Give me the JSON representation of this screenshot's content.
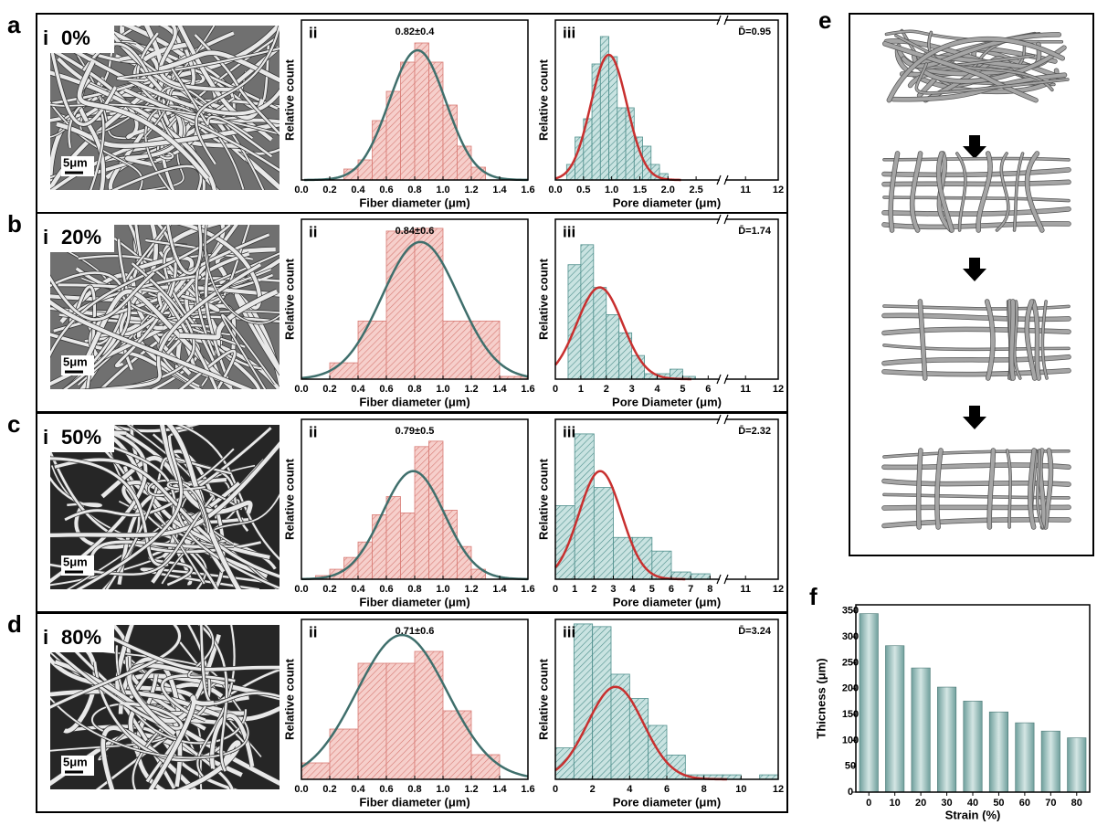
{
  "figure": {
    "rows": [
      {
        "letter": "a",
        "sem": {
          "label": "i",
          "strain": "0%",
          "scale": "5μm"
        }
      },
      {
        "letter": "b",
        "sem": {
          "label": "i",
          "strain": "20%",
          "scale": "5μm"
        }
      },
      {
        "letter": "c",
        "sem": {
          "label": "i",
          "strain": "50%",
          "scale": "5μm"
        }
      },
      {
        "letter": "d",
        "sem": {
          "label": "i",
          "strain": "80%",
          "scale": "5μm"
        }
      }
    ],
    "panel_e": {
      "letter": "e"
    }
  },
  "chart_data": [
    {
      "type": "histogram",
      "title": "ii",
      "annotation": "0.82±0.4",
      "xlabel": "Fiber diameter (μm)",
      "ylabel": "Relative count",
      "bins": [
        0.3,
        0.4,
        0.5,
        0.6,
        0.7,
        0.8,
        0.9,
        1.0,
        1.1,
        1.2,
        1.3
      ],
      "values": [
        12,
        22,
        65,
        97,
        129,
        150,
        129,
        82,
        37,
        14
      ],
      "color": "#f6cfcb",
      "hatch": "#d77a74",
      "fit": {
        "mean": 0.82,
        "sd": 0.2,
        "peak": 142,
        "color": "#3f6f6c"
      },
      "xlim": [
        0,
        1.6
      ],
      "ylim": [
        0,
        175
      ],
      "xticks": [
        {
          "value": 0,
          "label": "0.0"
        },
        0.2,
        0.4,
        0.6,
        0.8,
        {
          "value": 1,
          "label": "1.0"
        },
        1.2,
        1.4,
        1.6
      ]
    },
    {
      "type": "histogram",
      "title": "iii",
      "annotation": "D̄=0.95",
      "xlabel": "Pore diameter (μm)",
      "ylabel": "Relative count",
      "bins": [
        0.2,
        0.35,
        0.5,
        0.65,
        0.8,
        0.95,
        1.1,
        1.25,
        1.4,
        1.55,
        1.7,
        1.85,
        2.0
      ],
      "values": [
        17,
        47,
        67,
        127,
        157,
        135,
        79,
        79,
        47,
        37,
        17,
        7
      ],
      "color": "#c9e3e1",
      "hatch": "#4f8f8c",
      "fit": {
        "mean": 0.95,
        "sd": 0.32,
        "peak": 137,
        "color": "#c8302f"
      },
      "xlim": [
        0,
        12
      ],
      "xbreak": [
        2.85,
        10.5
      ],
      "ylim": [
        0,
        175
      ],
      "xticks": [
        {
          "value": 0,
          "label": "0.0"
        },
        0.5,
        {
          "value": 1,
          "label": "1.0"
        },
        1.5,
        {
          "value": 2,
          "label": "2.0"
        },
        2.5,
        11,
        12
      ]
    },
    {
      "type": "histogram",
      "title": "ii",
      "annotation": "0.84±0.6",
      "xlabel": "Fiber diameter (μm)",
      "ylabel": "Relative count",
      "bins": [
        0.2,
        0.4,
        0.6,
        0.8,
        1.0,
        1.2,
        1.4,
        1.6
      ],
      "values": [
        18,
        64,
        163,
        166,
        64,
        64,
        3
      ],
      "color": "#f6cfcb",
      "hatch": "#d77a74",
      "fit": {
        "mean": 0.84,
        "sd": 0.27,
        "peak": 151,
        "color": "#3f6f6c"
      },
      "xlim": [
        0,
        1.6
      ],
      "ylim": [
        0,
        176
      ],
      "xticks": [
        {
          "value": 0,
          "label": "0.0"
        },
        0.2,
        0.4,
        0.6,
        0.8,
        {
          "value": 1,
          "label": "1.0"
        },
        1.2,
        1.4,
        1.6
      ]
    },
    {
      "type": "histogram",
      "title": "iii",
      "annotation": "D̄=1.74",
      "xlabel": "Pore Diameter (μm)",
      "ylabel": "Relative count",
      "bins": [
        0.5,
        1,
        1.5,
        2,
        2.5,
        3,
        3.5,
        4,
        4.5,
        5,
        5.5
      ],
      "values": [
        126,
        148,
        101,
        71,
        51,
        26,
        6,
        6,
        11,
        3
      ],
      "color": "#c9e3e1",
      "hatch": "#4f8f8c",
      "fit": {
        "mean": 1.74,
        "sd": 0.9,
        "peak": 101,
        "color": "#c8302f"
      },
      "xlim": [
        0,
        12
      ],
      "xbreak": [
        6.3,
        10.5
      ],
      "ylim": [
        0,
        176
      ],
      "xticks": [
        0,
        1,
        2,
        3,
        4,
        5,
        6,
        11,
        12
      ]
    },
    {
      "type": "histogram",
      "title": "ii",
      "annotation": "0.79±0.5",
      "xlabel": "Fiber diameter (μm)",
      "ylabel": "Relative count",
      "bins": [
        0.1,
        0.2,
        0.3,
        0.4,
        0.5,
        0.6,
        0.7,
        0.8,
        0.9,
        1.0,
        1.1,
        1.2,
        1.3
      ],
      "values": [
        4,
        11,
        24,
        41,
        71,
        91,
        73,
        146,
        152,
        76,
        36,
        11
      ],
      "color": "#f6cfcb",
      "hatch": "#d77a74",
      "fit": {
        "mean": 0.79,
        "sd": 0.22,
        "peak": 119,
        "color": "#3f6f6c"
      },
      "xlim": [
        0,
        1.6
      ],
      "ylim": [
        0,
        176
      ],
      "xticks": [
        {
          "value": 0,
          "label": "0.0"
        },
        0.2,
        0.4,
        0.6,
        0.8,
        {
          "value": 1,
          "label": "1.0"
        },
        1.2,
        1.4,
        1.6
      ]
    },
    {
      "type": "histogram",
      "title": "iii",
      "annotation": "D̄=2.32",
      "xlabel": "Pore diameter (μm)",
      "ylabel": "Relative count",
      "bins": [
        0,
        1,
        2,
        3,
        4,
        5,
        6,
        7,
        8
      ],
      "values": [
        81,
        160,
        101,
        46,
        46,
        31,
        8,
        6
      ],
      "color": "#c9e3e1",
      "hatch": "#4f8f8c",
      "fit": {
        "mean": 2.32,
        "sd": 1.1,
        "peak": 119,
        "color": "#c8302f"
      },
      "xlim": [
        0,
        12
      ],
      "xbreak": [
        8.3,
        10.5
      ],
      "ylim": [
        0,
        176
      ],
      "xticks": [
        0,
        1,
        2,
        3,
        4,
        5,
        6,
        7,
        8,
        11,
        12
      ]
    },
    {
      "type": "histogram",
      "title": "ii",
      "annotation": "0.71±0.6",
      "xlabel": "Fiber diameter (μm)",
      "ylabel": "Relative count",
      "bins": [
        0,
        0.2,
        0.4,
        0.6,
        0.8,
        1.0,
        1.2,
        1.4
      ],
      "values": [
        18,
        55,
        127,
        127,
        140,
        75,
        27
      ],
      "color": "#f6cfcb",
      "hatch": "#d77a74",
      "fit": {
        "mean": 0.71,
        "sd": 0.32,
        "peak": 158,
        "color": "#3f6f6c"
      },
      "xlim": [
        0,
        1.6
      ],
      "ylim": [
        0,
        175
      ],
      "xticks": [
        {
          "value": 0,
          "label": "0.0"
        },
        0.2,
        0.4,
        0.6,
        0.8,
        {
          "value": 1,
          "label": "1.0"
        },
        1.2,
        1.4,
        1.6
      ]
    },
    {
      "type": "histogram",
      "title": "iii",
      "annotation": "D̄=3.24",
      "xlabel": "Pore diameter (μm)",
      "ylabel": "Relative count",
      "bins": [
        0,
        1,
        2,
        3,
        4,
        5,
        6,
        7,
        8,
        9,
        10,
        11,
        12
      ],
      "values": [
        35,
        173,
        170,
        117,
        90,
        60,
        27,
        5,
        5,
        5,
        0,
        5
      ],
      "color": "#c9e3e1",
      "hatch": "#4f8f8c",
      "fit": {
        "mean": 3.24,
        "sd": 1.5,
        "peak": 103,
        "color": "#c8302f"
      },
      "xlim": [
        0,
        12
      ],
      "ylim": [
        0,
        178
      ],
      "xticks": [
        0,
        2,
        4,
        6,
        8,
        10,
        12
      ]
    },
    {
      "type": "bar",
      "panel_label": "f",
      "xlabel": "Strain (%)",
      "ylabel": "Thicness (μm)",
      "categories": [
        "0",
        "10",
        "20",
        "30",
        "40",
        "50",
        "60",
        "70",
        "80"
      ],
      "values": [
        345,
        283,
        240,
        203,
        176,
        155,
        134,
        118,
        105
      ],
      "color": "#6f9f9c",
      "ylim": [
        0,
        362
      ],
      "yticks": [
        0,
        50,
        100,
        150,
        200,
        250,
        300,
        350
      ],
      "grid": false
    }
  ]
}
